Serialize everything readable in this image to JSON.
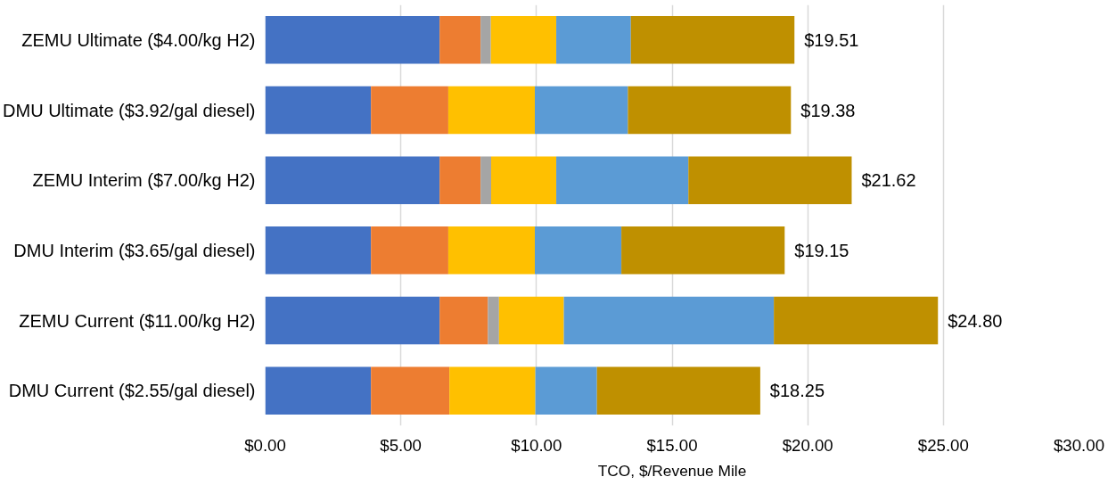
{
  "chart_data": {
    "type": "bar",
    "orientation": "horizontal",
    "stacked": true,
    "xlabel": "TCO, $/Revenue Mile",
    "categories": [
      "ZEMU Ultimate ($4.00/kg H2)",
      "DMU Ultimate ($3.92/gal diesel)",
      "ZEMU Interim ($7.00/kg H2)",
      "DMU Interim ($3.65/gal diesel)",
      "ZEMU Current ($11.00/kg H2)",
      "DMU Current ($2.55/gal diesel)"
    ],
    "series": [
      {
        "color": "#4472c4",
        "values": [
          6.43,
          3.9,
          6.43,
          3.9,
          6.43,
          3.9
        ]
      },
      {
        "color": "#ed7d31",
        "values": [
          1.51,
          2.85,
          1.51,
          2.85,
          1.78,
          2.89
        ]
      },
      {
        "color": "#a5a5a5",
        "values": [
          0.38,
          null,
          0.39,
          null,
          0.41,
          null
        ]
      },
      {
        "color": "#ffc000",
        "values": [
          2.41,
          3.19,
          2.4,
          3.19,
          2.39,
          3.17
        ]
      },
      {
        "color": "#5b9bd5",
        "values": [
          2.75,
          3.43,
          4.87,
          3.19,
          7.74,
          2.27
        ]
      },
      {
        "color": "#bf9000",
        "values": [
          6.03,
          6.01,
          6.02,
          6.02,
          6.05,
          6.02
        ]
      }
    ],
    "totals": [
      "$19.51",
      "$19.38",
      "$21.62",
      "$19.15",
      "$24.80",
      "$18.25"
    ],
    "xlim": [
      0,
      30
    ],
    "xticks": [
      {
        "value": 0,
        "label": "$0.00"
      },
      {
        "value": 5,
        "label": "$5.00"
      },
      {
        "value": 10,
        "label": "$10.00"
      },
      {
        "value": 15,
        "label": "$15.00"
      },
      {
        "value": 20,
        "label": "$20.00"
      },
      {
        "value": 25,
        "label": "$25.00"
      },
      {
        "value": 30,
        "label": "$30.00"
      }
    ],
    "grid": "x"
  }
}
